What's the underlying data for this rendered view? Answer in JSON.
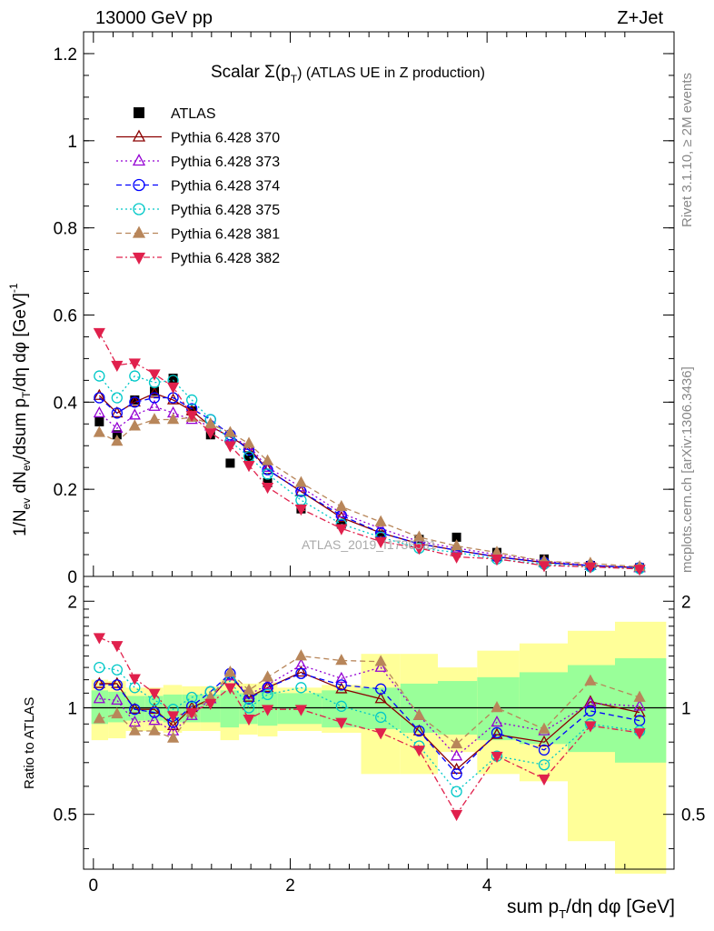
{
  "header": {
    "left": "13000 GeV pp",
    "right": "Z+Jet"
  },
  "side_labels": {
    "rivet": "Rivet 3.1.10, ≥ 2M events",
    "mcplots": "mcplots.cern.ch [arXiv:1306.3436]"
  },
  "watermark": "ATLAS_2019_I1736531",
  "colors": {
    "ratio_band_inner": "#99ff99",
    "ratio_band_outer": "#ffff99",
    "data_marker": "#000000"
  },
  "chart_data": [
    {
      "type": "scatter",
      "title": "Scalar Σ(p_T) (ATLAS UE in Z production)",
      "title_parts": {
        "main": "Scalar Σ(p",
        "sub": "T",
        "tail": ") (ATLAS UE in Z production)"
      },
      "ylabel": "1/N_ev dN_ev/dsum p_T/dη dφ [GeV]^-1",
      "ylabel_parts": {
        "a": "1/N",
        "a_sub": "ev",
        "b": " dN",
        "b_sub": "ev",
        "c": "/dsum p",
        "c_sub": "T",
        "d": "/dη dφ  [GeV]",
        "d_sup": "-1"
      },
      "xlim": [
        -0.1,
        5.9
      ],
      "ylim": [
        0,
        1.25
      ],
      "yticks": [
        "0",
        "0.2",
        "0.4",
        "0.6",
        "0.8",
        "1",
        "1.2"
      ],
      "x": [
        0.06,
        0.24,
        0.42,
        0.62,
        0.81,
        1.0,
        1.19,
        1.39,
        1.58,
        1.77,
        2.11,
        2.52,
        2.92,
        3.31,
        3.69,
        4.1,
        4.58,
        5.05,
        5.55
      ],
      "series": [
        {
          "name": "ATLAS",
          "color": "#000000",
          "marker": "square",
          "dash": "",
          "values": [
            0.355,
            0.325,
            0.405,
            0.425,
            0.455,
            0.38,
            0.325,
            0.26,
            0.275,
            0.215,
            0.155,
            0.12,
            0.095,
            0.085,
            0.09,
            0.055,
            0.04,
            0.025,
            0.02
          ]
        },
        {
          "name": "Pythia 6.428 370",
          "color": "#8b0000",
          "marker": "tri-up-open",
          "dash": "",
          "values": [
            0.415,
            0.375,
            0.4,
            0.42,
            0.405,
            0.38,
            0.345,
            0.32,
            0.295,
            0.245,
            0.195,
            0.135,
            0.1,
            0.075,
            0.06,
            0.045,
            0.032,
            0.025,
            0.02
          ]
        },
        {
          "name": "Pythia 6.428 373",
          "color": "#9400d3",
          "marker": "tri-up-open",
          "dash": "2,3",
          "values": [
            0.375,
            0.34,
            0.37,
            0.39,
            0.375,
            0.36,
            0.345,
            0.32,
            0.3,
            0.25,
            0.205,
            0.145,
            0.11,
            0.08,
            0.065,
            0.05,
            0.035,
            0.025,
            0.02
          ]
        },
        {
          "name": "Pythia 6.428 374",
          "color": "#0000ff",
          "marker": "circle-open",
          "dash": "6,4",
          "values": [
            0.41,
            0.375,
            0.4,
            0.41,
            0.41,
            0.385,
            0.36,
            0.325,
            0.29,
            0.245,
            0.195,
            0.14,
            0.1,
            0.075,
            0.06,
            0.045,
            0.032,
            0.025,
            0.02
          ]
        },
        {
          "name": "Pythia 6.428 375",
          "color": "#00c8c8",
          "marker": "circle-open",
          "dash": "2,3",
          "values": [
            0.46,
            0.41,
            0.46,
            0.445,
            0.45,
            0.405,
            0.36,
            0.31,
            0.275,
            0.235,
            0.175,
            0.12,
            0.09,
            0.065,
            0.055,
            0.04,
            0.028,
            0.022,
            0.018
          ]
        },
        {
          "name": "Pythia 6.428 381",
          "color": "#b8865a",
          "marker": "tri-up-filled",
          "dash": "6,4",
          "values": [
            0.33,
            0.31,
            0.345,
            0.36,
            0.36,
            0.365,
            0.35,
            0.33,
            0.305,
            0.265,
            0.215,
            0.16,
            0.125,
            0.09,
            0.07,
            0.055,
            0.035,
            0.03,
            0.022
          ]
        },
        {
          "name": "Pythia 6.428 382",
          "color": "#e0204c",
          "marker": "tri-down-filled",
          "dash": "7,3,2,3",
          "values": [
            0.56,
            0.485,
            0.49,
            0.465,
            0.435,
            0.37,
            0.33,
            0.3,
            0.255,
            0.205,
            0.155,
            0.11,
            0.08,
            0.065,
            0.045,
            0.04,
            0.025,
            0.022,
            0.017
          ]
        }
      ]
    },
    {
      "type": "scatter",
      "title": "",
      "ylabel": "Ratio to ATLAS",
      "xlabel": "sum p_T/dη dφ [GeV]",
      "xlabel_parts": {
        "a": "sum p",
        "a_sub": "T",
        "b": "/dη dφ [GeV]"
      },
      "xlim": [
        -0.1,
        5.9
      ],
      "ylim": [
        0.35,
        2.35
      ],
      "log_y": true,
      "yticks_left": [
        "2",
        "1",
        "0.5"
      ],
      "yticks_right": [
        "2",
        "1",
        "0.5"
      ],
      "xticks": [
        "0",
        "2",
        "4"
      ],
      "reference_line": 1,
      "bins": [
        [
          -0.02,
          0.15
        ],
        [
          0.15,
          0.33
        ],
        [
          0.33,
          0.52
        ],
        [
          0.52,
          0.71
        ],
        [
          0.71,
          0.9
        ],
        [
          0.9,
          1.09
        ],
        [
          1.09,
          1.29
        ],
        [
          1.29,
          1.48
        ],
        [
          1.48,
          1.67
        ],
        [
          1.67,
          1.87
        ],
        [
          1.87,
          2.32
        ],
        [
          2.32,
          2.72
        ],
        [
          2.72,
          3.12
        ],
        [
          3.12,
          3.5
        ],
        [
          3.5,
          3.9
        ],
        [
          3.9,
          4.33
        ],
        [
          4.33,
          4.82
        ],
        [
          4.82,
          5.3
        ],
        [
          5.3,
          5.82
        ]
      ],
      "band_inner": [
        [
          0.9,
          1.12
        ],
        [
          0.91,
          1.11
        ],
        [
          0.92,
          1.08
        ],
        [
          0.92,
          1.08
        ],
        [
          0.91,
          1.09
        ],
        [
          0.91,
          1.09
        ],
        [
          0.91,
          1.09
        ],
        [
          0.88,
          1.12
        ],
        [
          0.9,
          1.1
        ],
        [
          0.89,
          1.11
        ],
        [
          0.9,
          1.1
        ],
        [
          0.88,
          1.12
        ],
        [
          0.87,
          1.14
        ],
        [
          0.85,
          1.17
        ],
        [
          0.84,
          1.19
        ],
        [
          0.81,
          1.22
        ],
        [
          0.79,
          1.26
        ],
        [
          0.75,
          1.32
        ],
        [
          0.7,
          1.38
        ]
      ],
      "band_outer": [
        [
          0.81,
          1.2
        ],
        [
          0.82,
          1.19
        ],
        [
          0.86,
          1.14
        ],
        [
          0.86,
          1.14
        ],
        [
          0.85,
          1.16
        ],
        [
          0.86,
          1.15
        ],
        [
          0.86,
          1.15
        ],
        [
          0.81,
          1.2
        ],
        [
          0.84,
          1.17
        ],
        [
          0.83,
          1.18
        ],
        [
          0.86,
          1.14
        ],
        [
          0.85,
          1.16
        ],
        [
          0.65,
          1.42
        ],
        [
          0.65,
          1.42
        ],
        [
          0.75,
          1.3
        ],
        [
          0.65,
          1.45
        ],
        [
          0.62,
          1.52
        ],
        [
          0.42,
          1.65
        ],
        [
          0.34,
          1.75
        ]
      ],
      "series": [
        {
          "name": "Pythia 6.428 370",
          "values": [
            1.17,
            1.17,
            0.99,
            0.99,
            0.89,
            1.0,
            1.06,
            1.23,
            1.07,
            1.14,
            1.26,
            1.13,
            1.06,
            0.86,
            0.67,
            0.84,
            0.8,
            1.04,
            0.97
          ]
        },
        {
          "name": "Pythia 6.428 373",
          "values": [
            1.06,
            1.05,
            0.91,
            0.92,
            0.86,
            0.95,
            1.06,
            1.23,
            1.09,
            1.16,
            1.32,
            1.21,
            1.3,
            0.95,
            0.73,
            0.91,
            0.86,
            1.03,
            1.01
          ]
        },
        {
          "name": "Pythia 6.428 374",
          "values": [
            1.16,
            1.16,
            0.99,
            0.97,
            0.91,
            1.01,
            1.11,
            1.25,
            1.06,
            1.14,
            1.25,
            1.16,
            1.13,
            0.86,
            0.65,
            0.85,
            0.76,
            0.98,
            0.92
          ]
        },
        {
          "name": "Pythia 6.428 375",
          "values": [
            1.3,
            1.28,
            1.14,
            1.05,
            0.99,
            1.07,
            1.11,
            1.19,
            1.0,
            1.09,
            1.14,
            1.01,
            0.94,
            0.78,
            0.58,
            0.73,
            0.69,
            0.9,
            0.86
          ]
        },
        {
          "name": "Pythia 6.428 381",
          "values": [
            0.93,
            0.96,
            0.86,
            0.86,
            0.82,
            0.97,
            1.07,
            1.26,
            1.12,
            1.22,
            1.4,
            1.36,
            1.35,
            0.95,
            0.79,
            1.0,
            0.87,
            1.19,
            1.07
          ]
        },
        {
          "name": "Pythia 6.428 382",
          "values": [
            1.58,
            1.5,
            1.21,
            1.1,
            0.95,
            0.97,
            1.03,
            1.14,
            0.93,
            0.99,
            0.99,
            0.91,
            0.85,
            0.76,
            0.5,
            0.73,
            0.63,
            0.89,
            0.85
          ]
        }
      ]
    }
  ]
}
